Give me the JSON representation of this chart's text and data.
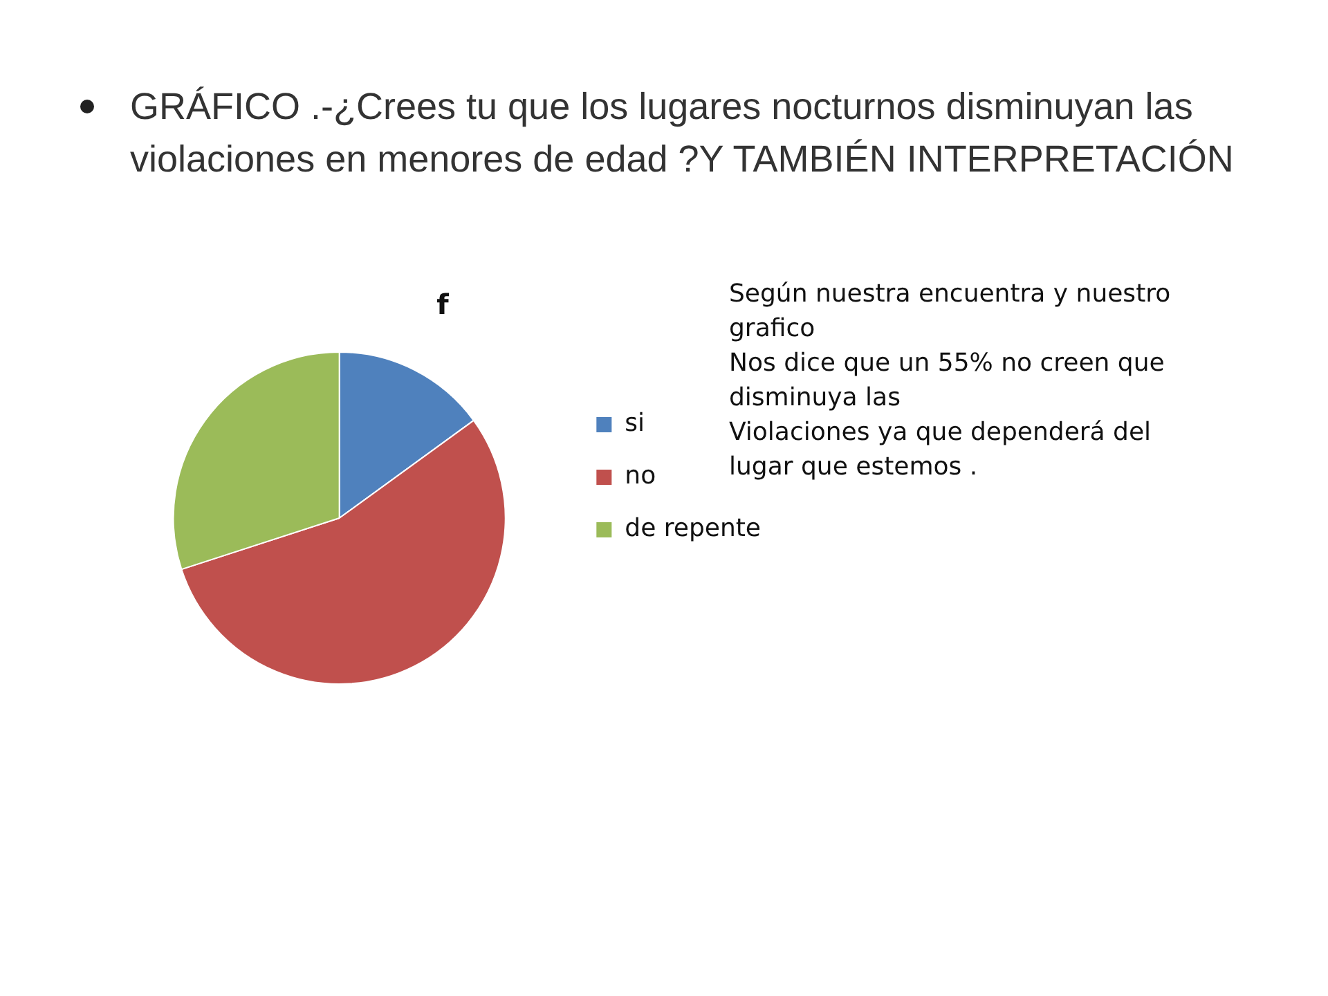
{
  "chart_data": {
    "type": "pie",
    "title": "f",
    "categories": [
      "si",
      "no",
      "de repente"
    ],
    "values": [
      15,
      55,
      30
    ],
    "colors": [
      "#4f81bd",
      "#c0504d",
      "#9bbb59"
    ],
    "legend": "right",
    "annotations": [
      "GRÁFICO .-¿Crees tu que los lugares nocturnos disminuyan las violaciones en menores de edad ?Y TAMBIÉN INTERPRETACIÓN",
      "Según nuestra encuentra y nuestro grafico\nNos dice que un 55% no creen que disminuya las\nViolaciones ya que dependerá del lugar que estemos ."
    ]
  }
}
